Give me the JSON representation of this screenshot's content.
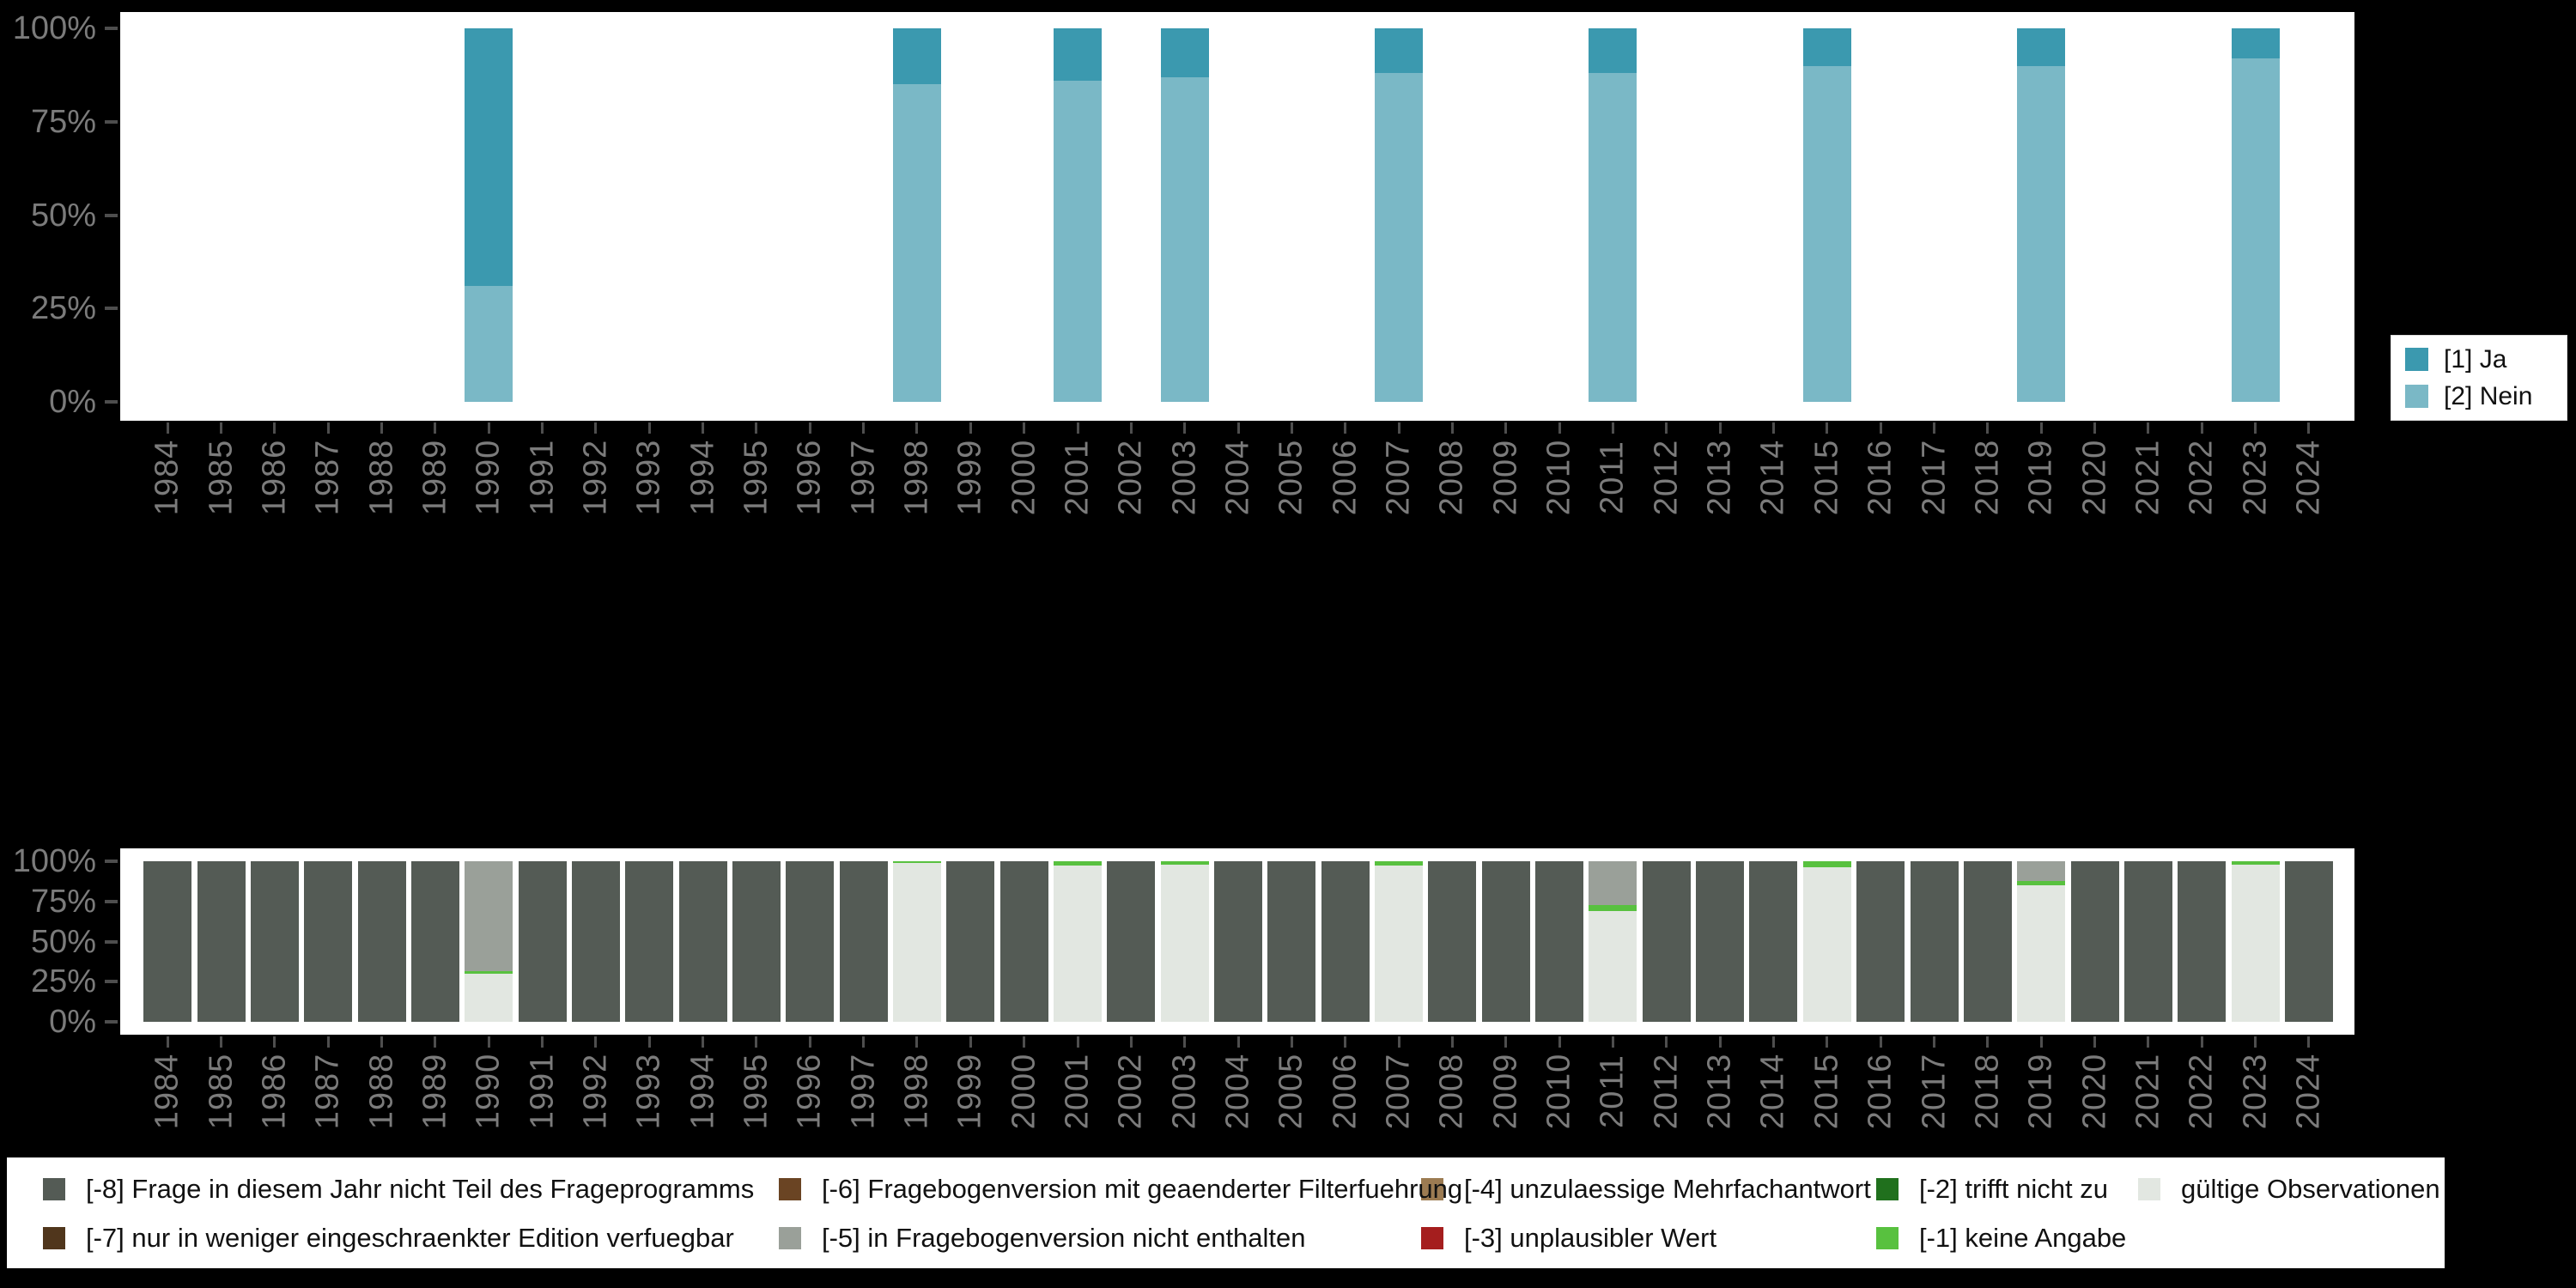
{
  "figure": {
    "background": "#000000",
    "panel_background": "#ffffff"
  },
  "chart_data": [
    {
      "type": "bar",
      "subtype": "stacked-percent",
      "title": "",
      "xlabel": "",
      "ylabel": "",
      "ylim": [
        0,
        100
      ],
      "grid": false,
      "y_ticks": [
        "0%",
        "25%",
        "50%",
        "75%",
        "100%"
      ],
      "x": [
        1984,
        1985,
        1986,
        1987,
        1988,
        1989,
        1990,
        1991,
        1992,
        1993,
        1994,
        1995,
        1996,
        1997,
        1998,
        1999,
        2000,
        2001,
        2002,
        2003,
        2004,
        2005,
        2006,
        2007,
        2008,
        2009,
        2010,
        2011,
        2012,
        2013,
        2014,
        2015,
        2016,
        2017,
        2018,
        2019,
        2020,
        2021,
        2022,
        2023,
        2024
      ],
      "bars": {
        "1990": [
          [
            "2_nein",
            31
          ],
          [
            "1_ja",
            69
          ]
        ],
        "1998": [
          [
            "2_nein",
            85
          ],
          [
            "1_ja",
            15
          ]
        ],
        "2001": [
          [
            "2_nein",
            86
          ],
          [
            "1_ja",
            14
          ]
        ],
        "2003": [
          [
            "2_nein",
            87
          ],
          [
            "1_ja",
            13
          ]
        ],
        "2007": [
          [
            "2_nein",
            88
          ],
          [
            "1_ja",
            12
          ]
        ],
        "2011": [
          [
            "2_nein",
            88
          ],
          [
            "1_ja",
            12
          ]
        ],
        "2015": [
          [
            "2_nein",
            90
          ],
          [
            "1_ja",
            10
          ]
        ],
        "2019": [
          [
            "2_nein",
            90
          ],
          [
            "1_ja",
            10
          ]
        ],
        "2023": [
          [
            "2_nein",
            92
          ],
          [
            "1_ja",
            8
          ]
        ]
      },
      "colors": {
        "1_ja": "#3b99af",
        "2_nein": "#7ab8c6"
      },
      "legend": {
        "position": "right",
        "items": [
          {
            "key": "1_ja",
            "label": "[1] Ja",
            "color": "#3b99af"
          },
          {
            "key": "2_nein",
            "label": "[2] Nein",
            "color": "#7ab8c6"
          }
        ]
      }
    },
    {
      "type": "bar",
      "subtype": "stacked-percent",
      "title": "",
      "xlabel": "",
      "ylabel": "",
      "ylim": [
        0,
        100
      ],
      "grid": false,
      "y_ticks": [
        "0%",
        "25%",
        "50%",
        "75%",
        "100%"
      ],
      "x": [
        1984,
        1985,
        1986,
        1987,
        1988,
        1989,
        1990,
        1991,
        1992,
        1993,
        1994,
        1995,
        1996,
        1997,
        1998,
        1999,
        2000,
        2001,
        2002,
        2003,
        2004,
        2005,
        2006,
        2007,
        2008,
        2009,
        2010,
        2011,
        2012,
        2013,
        2014,
        2015,
        2016,
        2017,
        2018,
        2019,
        2020,
        2021,
        2022,
        2023,
        2024
      ],
      "default_bar": [
        [
          "-8",
          100
        ]
      ],
      "bars": {
        "1990": [
          [
            "valid",
            30
          ],
          [
            "-1",
            1.5
          ],
          [
            "-5",
            68.5
          ]
        ],
        "1998": [
          [
            "valid",
            99
          ],
          [
            "-1",
            1
          ]
        ],
        "2001": [
          [
            "valid",
            97.5
          ],
          [
            "-1",
            2.5
          ]
        ],
        "2003": [
          [
            "valid",
            98
          ],
          [
            "-1",
            2
          ]
        ],
        "2007": [
          [
            "valid",
            97.5
          ],
          [
            "-1",
            2.5
          ]
        ],
        "2011": [
          [
            "valid",
            69
          ],
          [
            "-1",
            3.5
          ],
          [
            "-5",
            27.5
          ]
        ],
        "2015": [
          [
            "valid",
            96.5
          ],
          [
            "-1",
            3.5
          ]
        ],
        "2019": [
          [
            "valid",
            85
          ],
          [
            "-1",
            2.5
          ],
          [
            "-5",
            12.5
          ]
        ],
        "2023": [
          [
            "valid",
            98
          ],
          [
            "-1",
            2
          ]
        ]
      },
      "colors": {
        "-8": "#545b55",
        "-7": "#50361c",
        "-6": "#6a4423",
        "-5": "#9aa099",
        "-4": "#9c7b52",
        "-3": "#a51e1e",
        "-2": "#20701d",
        "-1": "#58c13f",
        "valid": "#e2e7e1"
      },
      "legend": {
        "position": "bottom",
        "items": [
          {
            "key": "-8",
            "label": "[-8] Frage in diesem Jahr nicht Teil des Frageprogramms",
            "color": "#545b55",
            "column": 0,
            "row": 0
          },
          {
            "key": "-7",
            "label": "[-7] nur in weniger eingeschraenkter Edition verfuegbar",
            "color": "#50361c",
            "column": 0,
            "row": 1
          },
          {
            "key": "-6",
            "label": "[-6] Fragebogenversion mit geaenderter Filterfuehrung",
            "color": "#6a4423",
            "column": 1,
            "row": 0
          },
          {
            "key": "-5",
            "label": "[-5] in Fragebogenversion nicht enthalten",
            "color": "#9aa099",
            "column": 1,
            "row": 1
          },
          {
            "key": "-4",
            "label": "[-4] unzulaessige Mehrfachantwort",
            "color": "#9c7b52",
            "column": 2,
            "row": 0
          },
          {
            "key": "-3",
            "label": "[-3] unplausibler Wert",
            "color": "#a51e1e",
            "column": 2,
            "row": 1
          },
          {
            "key": "-2",
            "label": "[-2] trifft nicht zu",
            "color": "#20701d",
            "column": 3,
            "row": 0
          },
          {
            "key": "-1",
            "label": "[-1] keine Angabe",
            "color": "#58c13f",
            "column": 3,
            "row": 1
          },
          {
            "key": "valid",
            "label": "gültige Observationen",
            "color": "#e2e7e1",
            "column": 4,
            "row": 0
          }
        ]
      }
    }
  ]
}
